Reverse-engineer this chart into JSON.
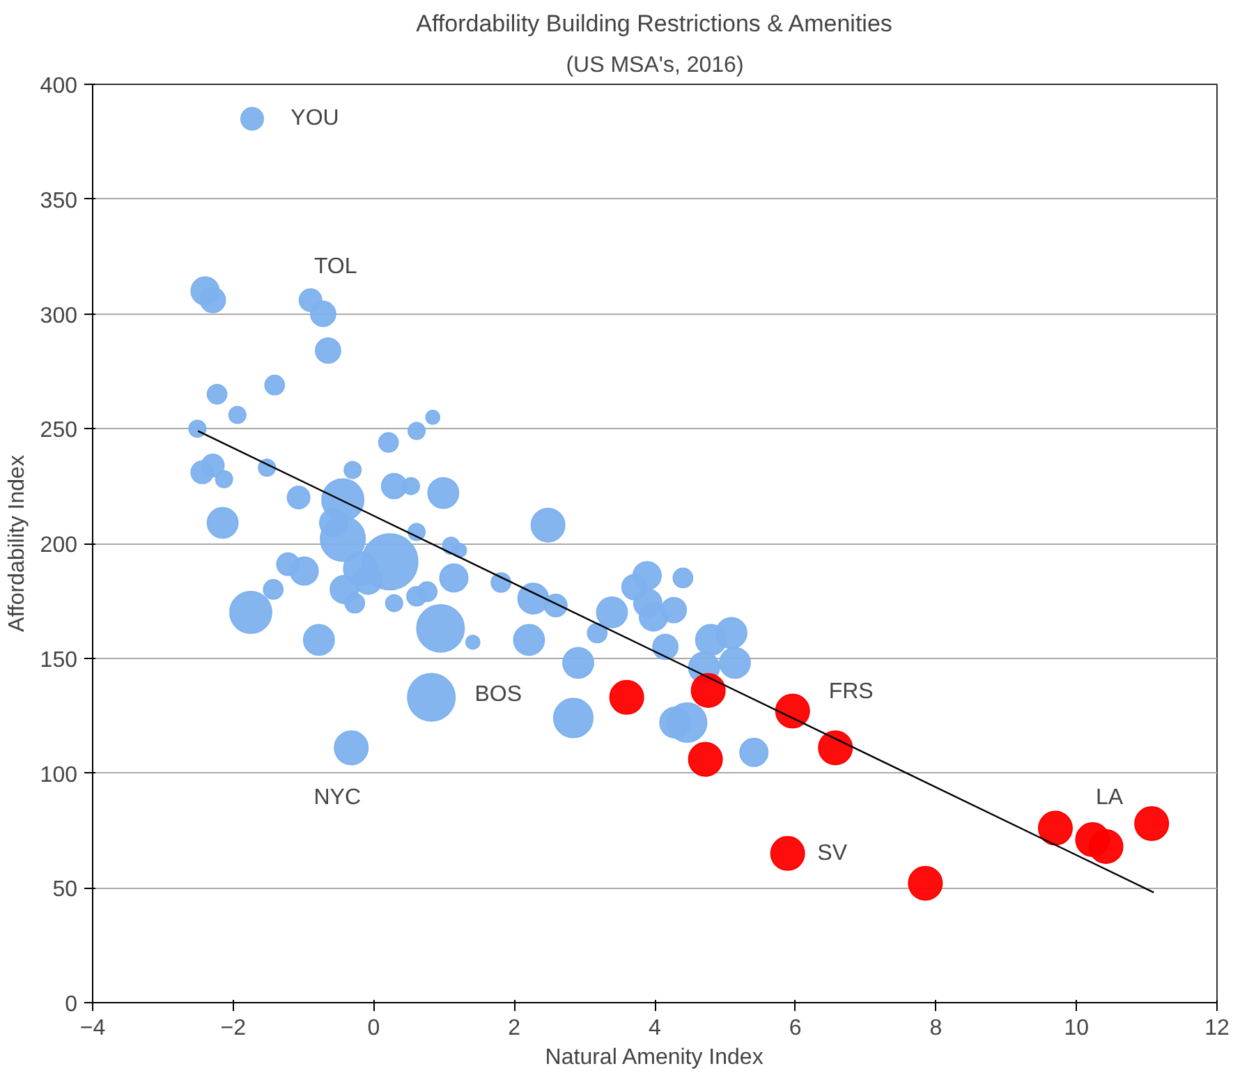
{
  "chart_data": {
    "type": "bubble",
    "title": "Affordability Building Restrictions & Amenities",
    "subtitle": "(US MSA's, 2016)",
    "xlabel": "Natural Amenity Index",
    "ylabel": "Affordability Index",
    "xlim": [
      -4,
      12
    ],
    "xticks": [
      -4,
      -2,
      0,
      2,
      4,
      6,
      8,
      10,
      12
    ],
    "ylim": [
      0,
      400
    ],
    "yticks": [
      0,
      50,
      100,
      150,
      200,
      250,
      300,
      350,
      400
    ],
    "grid": "y",
    "series": [
      {
        "color": "#7eb1ee",
        "x": [
          -1.73,
          -2.4,
          -2.29,
          -0.9,
          -0.72,
          -0.65,
          -2.23,
          -1.41,
          -1.94,
          -2.51,
          0.84,
          0.61,
          0.21,
          -2.44,
          -2.29,
          -2.13,
          -1.52,
          -0.3,
          0.29,
          0.53,
          0.99,
          -1.07,
          -2.15,
          -0.44,
          -0.57,
          -0.44,
          0.61,
          1.1,
          1.22,
          0.23,
          -0.19,
          -0.08,
          -1.22,
          -0.99,
          -1.43,
          -0.42,
          -0.27,
          -1.75,
          -0.78,
          0.29,
          0.61,
          0.76,
          1.14,
          0.95,
          1.41,
          -0.32,
          0.82,
          2.48,
          1.81,
          2.27,
          2.59,
          2.21,
          3.39,
          3.18,
          2.91,
          2.84,
          3.89,
          3.71,
          4.4,
          3.9,
          3.98,
          4.27,
          4.15,
          4.8,
          5.09,
          5.14,
          4.7,
          4.29,
          4.46,
          5.41
        ],
        "values": [
          385,
          310,
          306,
          306,
          300,
          284,
          265,
          269,
          256,
          250,
          255,
          249,
          244,
          231,
          234,
          228,
          233,
          232,
          225,
          225,
          222,
          220,
          209,
          219,
          209,
          202,
          205,
          199,
          197,
          192,
          189,
          184,
          191,
          188,
          180,
          180,
          174,
          170,
          158,
          174,
          177,
          179,
          185,
          163,
          157,
          111,
          133,
          208,
          183,
          176,
          173,
          158,
          170,
          161,
          148,
          124,
          186,
          181,
          185,
          174,
          168,
          171,
          155,
          158,
          161,
          148,
          146,
          122,
          122,
          109
        ],
        "sizes": [
          0.16,
          0.25,
          0.2,
          0.16,
          0.2,
          0.2,
          0.12,
          0.12,
          0.09,
          0.09,
          0.06,
          0.09,
          0.12,
          0.16,
          0.16,
          0.09,
          0.09,
          0.09,
          0.2,
          0.09,
          0.3,
          0.16,
          0.3,
          0.56,
          0.25,
          0.64,
          0.09,
          0.09,
          0.06,
          1,
          0.36,
          0.25,
          0.16,
          0.25,
          0.12,
          0.25,
          0.12,
          0.56,
          0.3,
          0.09,
          0.12,
          0.12,
          0.25,
          0.72,
          0.06,
          0.36,
          0.72,
          0.36,
          0.12,
          0.3,
          0.16,
          0.3,
          0.3,
          0.12,
          0.3,
          0.49,
          0.25,
          0.2,
          0.12,
          0.25,
          0.25,
          0.2,
          0.2,
          0.3,
          0.3,
          0.3,
          0.3,
          0.3,
          0.49,
          0.25
        ]
      },
      {
        "color": "#ff0000",
        "x": [
          3.6,
          4.76,
          5.96,
          6.57,
          4.72,
          5.89,
          7.85,
          9.7,
          10.23,
          10.42,
          11.07
        ],
        "values": [
          133,
          136,
          127,
          111,
          106,
          65,
          52,
          76,
          71,
          68,
          78
        ],
        "sizes": [
          0.36,
          0.36,
          0.36,
          0.36,
          0.36,
          0.36,
          0.36,
          0.36,
          0.36,
          0.36,
          0.36
        ]
      },
      {
        "type": "line",
        "color": "#000000",
        "x": [
          -2.5,
          11.1
        ],
        "values": [
          249,
          48
        ]
      }
    ],
    "annotations": [
      {
        "text": "YOU",
        "x": -1.73,
        "y": 385
      },
      {
        "text": "TOL",
        "x": -0.9,
        "y": 306
      },
      {
        "text": "NYC",
        "x": -0.32,
        "y": 111
      },
      {
        "text": "BOS",
        "x": 0.82,
        "y": 133
      },
      {
        "text": "FRS",
        "x": 5.96,
        "y": 127
      },
      {
        "text": "SV",
        "x": 5.89,
        "y": 65
      },
      {
        "text": "LA",
        "x": 10.23,
        "y": 71
      }
    ]
  }
}
